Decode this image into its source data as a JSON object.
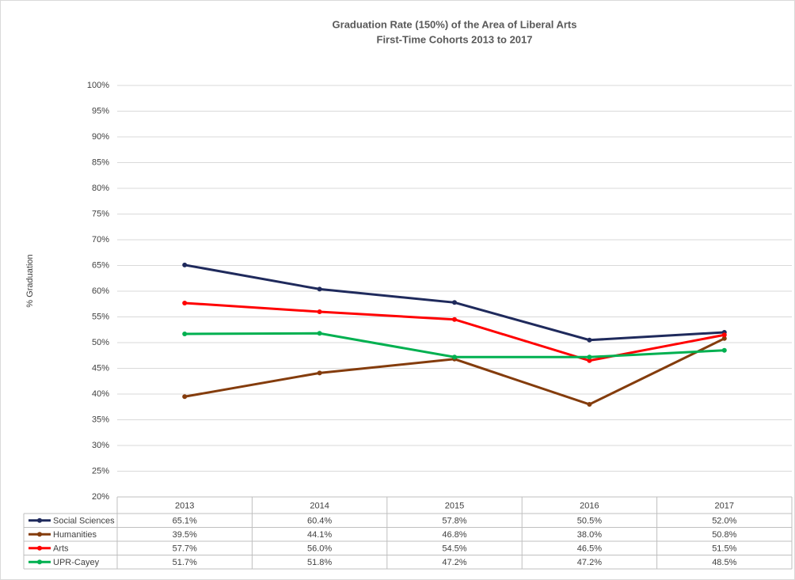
{
  "chart_data": {
    "type": "line",
    "title": "Graduation Rate (150%) of the Area of Liberal Arts",
    "subtitle": "First-Time Cohorts 2013 to 2017",
    "y_label": "% Graduation",
    "categories": [
      "2013",
      "2014",
      "2015",
      "2016",
      "2017"
    ],
    "series": [
      {
        "name": "Social Sciences",
        "color": "#1f2a5c",
        "values": [
          65.1,
          60.4,
          57.8,
          50.5,
          52.0
        ],
        "value_labels": [
          "65.1%",
          "60.4%",
          "57.8%",
          "50.5%",
          "52.0%"
        ]
      },
      {
        "name": "Humanities",
        "color": "#843c0c",
        "values": [
          39.5,
          44.1,
          46.8,
          38.0,
          50.8
        ],
        "value_labels": [
          "39.5%",
          "44.1%",
          "46.8%",
          "38.0%",
          "50.8%"
        ]
      },
      {
        "name": "Arts",
        "color": "#ff0000",
        "values": [
          57.7,
          56.0,
          54.5,
          46.5,
          51.5
        ],
        "value_labels": [
          "57.7%",
          "56.0%",
          "54.5%",
          "46.5%",
          "51.5%"
        ]
      },
      {
        "name": "UPR-Cayey",
        "color": "#00b050",
        "values": [
          51.7,
          51.8,
          47.2,
          47.2,
          48.5
        ],
        "value_labels": [
          "51.7%",
          "51.8%",
          "47.2%",
          "47.2%",
          "48.5%"
        ]
      }
    ],
    "ylim": [
      20,
      100
    ],
    "yticks": [
      {
        "value": 20,
        "label": "20%"
      },
      {
        "value": 25,
        "label": "25%"
      },
      {
        "value": 30,
        "label": "30%"
      },
      {
        "value": 35,
        "label": "35%"
      },
      {
        "value": 40,
        "label": "40%"
      },
      {
        "value": 45,
        "label": "45%"
      },
      {
        "value": 50,
        "label": "50%"
      },
      {
        "value": 55,
        "label": "55%"
      },
      {
        "value": 60,
        "label": "60%"
      },
      {
        "value": 65,
        "label": "65%"
      },
      {
        "value": 70,
        "label": "70%"
      },
      {
        "value": 75,
        "label": "75%"
      },
      {
        "value": 80,
        "label": "80%"
      },
      {
        "value": 85,
        "label": "85%"
      },
      {
        "value": 90,
        "label": "90%"
      },
      {
        "value": 95,
        "label": "95%"
      },
      {
        "value": 100,
        "label": "100%"
      }
    ],
    "grid": true
  }
}
